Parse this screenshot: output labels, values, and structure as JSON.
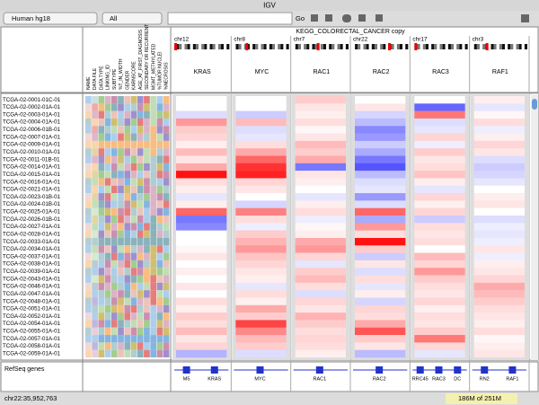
{
  "window": {
    "title": "IGV"
  },
  "toolbar": {
    "genome": "Human hg18",
    "chromosome": "All",
    "go": "Go"
  },
  "header": {
    "gene_list": "KEGG_COLORECTAL_CANCER copy",
    "attributes": [
      "NAME",
      "DATA FILE",
      "DATA TYPE",
      "LINKING_ID",
      "SUBTYPE",
      "%T_IN_WIDTH",
      "GENDER",
      "KARNSCORE",
      "AGE_AT_FIRST_DIAGNOSIS",
      "SECONDARY OR RECURRENT",
      "MGMT_METHYLATED",
      "%TUMOR NUCLEI",
      "%NECROSIS"
    ],
    "loci": [
      {
        "chr": "chr12",
        "gene": "KRAS",
        "features": [
          "M5",
          "KRAS"
        ],
        "values": [
          0,
          0,
          -0.4,
          1.2,
          0.6,
          0.5,
          0.2,
          0.8,
          0.3,
          1.0,
          2.8,
          0.4,
          0.2,
          -0.3,
          0.2,
          1.8,
          -1.6,
          -1.4,
          0,
          0,
          0.1,
          0.3,
          0,
          0.2,
          0,
          0.3,
          0,
          0.4,
          0.2,
          0.6,
          0.4,
          0.8,
          0.3,
          0.5,
          -0.9
        ]
      },
      {
        "chr": "chr8",
        "gene": "MYC",
        "features": [
          "MYC"
        ],
        "values": [
          0,
          0,
          -0.6,
          0.8,
          -0.4,
          -0.3,
          0.4,
          1.0,
          1.8,
          2.4,
          2.6,
          0.5,
          0.3,
          0,
          -0.5,
          1.5,
          0.4,
          -0.2,
          0.6,
          0.9,
          1.2,
          0.7,
          0.5,
          0.3,
          0.2,
          -0.3,
          0.4,
          0.2,
          1.0,
          0.6,
          2.2,
          1.4,
          0.8,
          0.6,
          -0.4
        ]
      },
      {
        "chr": "chr7",
        "gene": "RAC1",
        "features": [
          "RAC1"
        ],
        "values": [
          0.6,
          0.3,
          0.2,
          0.4,
          0.1,
          0.3,
          0.8,
          0.6,
          1.0,
          -1.6,
          0.3,
          0.2,
          0,
          -0.3,
          0.2,
          0.4,
          -0.2,
          0.1,
          0.2,
          1.0,
          1.2,
          0.5,
          -0.3,
          0.6,
          0.8,
          0.4,
          -0.4,
          0.5,
          0.3,
          0.9,
          0.6,
          0.4,
          0.5,
          0.4,
          0.2
        ]
      },
      {
        "chr": "chr22",
        "gene": "RAC2",
        "features": [
          "RAC2"
        ],
        "values": [
          0,
          0.3,
          -0.5,
          -0.8,
          -1.4,
          -1.2,
          -0.6,
          -1.0,
          -1.6,
          -2.0,
          -0.8,
          -0.4,
          -0.3,
          -1.2,
          -0.4,
          1.8,
          -1.0,
          1.2,
          0.4,
          2.8,
          0.6,
          -0.6,
          0.3,
          -0.4,
          0.4,
          -0.3,
          0.2,
          -0.5,
          0.5,
          0.4,
          1.0,
          2.0,
          0.6,
          0.3,
          -0.8
        ]
      },
      {
        "chr": "chr17",
        "gene": "RAC3",
        "features": [
          "RRC45",
          "RAC3",
          "DC"
        ],
        "values": [
          0,
          -1.8,
          1.6,
          -0.4,
          -0.3,
          0.5,
          -0.2,
          0.6,
          0.3,
          0.4,
          0.7,
          0.2,
          -0.3,
          0.5,
          0.2,
          0.5,
          -0.6,
          0.4,
          0.3,
          0.4,
          0,
          0.8,
          0.5,
          1.2,
          0.6,
          0.4,
          0.3,
          0.5,
          0.2,
          0.4,
          0.3,
          0.6,
          1.6,
          0.5,
          -0.3
        ]
      },
      {
        "chr": "chr3",
        "gene": "RAF1",
        "features": [
          "RN2",
          "RAF1"
        ],
        "values": [
          0.2,
          -0.3,
          0.1,
          0.4,
          -0.2,
          0.2,
          0.5,
          0.3,
          -0.4,
          -0.6,
          -0.5,
          -0.3,
          0,
          0.2,
          0.3,
          0,
          -0.4,
          -0.2,
          -0.3,
          -0.2,
          0.3,
          -0.2,
          0.2,
          0.3,
          0.5,
          1.0,
          0.8,
          0.6,
          0.4,
          0.3,
          0.2,
          0.4,
          0.1,
          0.2,
          0.3
        ]
      }
    ]
  },
  "samples": [
    "TCGA-02-0001-01C-01",
    "TCGA-02-0002-01A-01",
    "TCGA-02-0003-01A-01",
    "TCGA-02-0004-01A-01",
    "TCGA-02-0006-01B-01",
    "TCGA-02-0007-01A-01",
    "TCGA-02-0009-01A-01",
    "TCGA-02-0010-01A-01",
    "TCGA-02-0011-01B-01",
    "TCGA-02-0014-01A-01",
    "TCGA-02-0015-01A-01",
    "TCGA-02-0016-01A-01",
    "TCGA-02-0021-01A-01",
    "TCGA-02-0023-01B-01",
    "TCGA-02-0024-01B-01",
    "TCGA-02-0025-01A-01",
    "TCGA-02-0026-01B-01",
    "TCGA-02-0027-01A-01",
    "TCGA-02-0028-01A-01",
    "TCGA-02-0033-01A-01",
    "TCGA-02-0034-01A-01",
    "TCGA-02-0037-01A-01",
    "TCGA-02-0038-01A-01",
    "TCGA-02-0039-01A-01",
    "TCGA-02-0043-01A-01",
    "TCGA-02-0046-01A-01",
    "TCGA-02-0047-01A-01",
    "TCGA-02-0048-01A-01",
    "TCGA-02-0051-01A-01",
    "TCGA-02-0052-01A-01",
    "TCGA-02-0054-01A-01",
    "TCGA-02-0055-01A-01",
    "TCGA-02-0057-01A-01",
    "TCGA-02-0058-01A-01",
    "TCGA-02-0059-01A-01"
  ],
  "feature_track": {
    "name": "RefSeq genes"
  },
  "status": {
    "position": "chr22:35,952,763",
    "memory": "186M of 251M"
  }
}
